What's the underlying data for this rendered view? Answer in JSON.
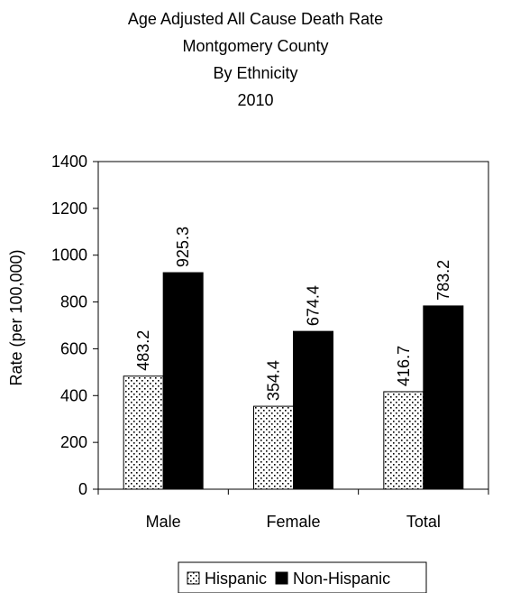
{
  "chart_data": {
    "type": "bar",
    "title_lines": [
      "Age Adjusted All Cause Death Rate",
      "Montgomery County",
      "By Ethnicity",
      "2010"
    ],
    "ylabel": "Rate (per 100,000)",
    "xlabel": "",
    "categories": [
      "Male",
      "Female",
      "Total"
    ],
    "series": [
      {
        "name": "Hispanic",
        "values": [
          483.2,
          354.4,
          416.7
        ],
        "labels": [
          "483.2",
          "354.4",
          "416.7"
        ],
        "fill": "dots"
      },
      {
        "name": "Non-Hispanic",
        "values": [
          925.3,
          674.4,
          783.2
        ],
        "labels": [
          "925.3",
          "674.4",
          "783.2"
        ],
        "fill": "#000000"
      }
    ],
    "ylim": [
      0,
      1400
    ],
    "yticks": [
      0,
      200,
      400,
      600,
      800,
      1000,
      1200,
      1400
    ],
    "grid": false,
    "legend_position": "bottom"
  }
}
